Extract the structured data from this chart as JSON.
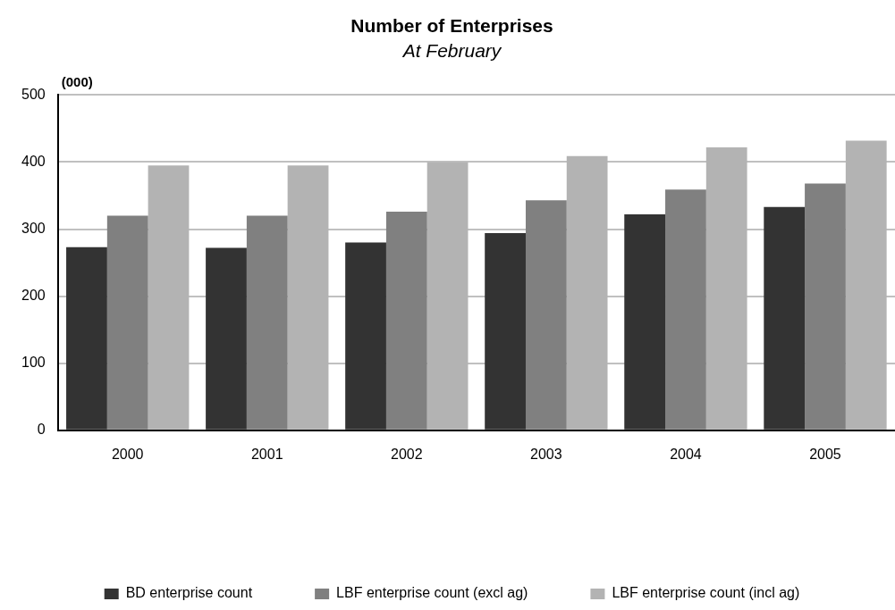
{
  "chart_data": {
    "type": "bar",
    "title": "Number of Enterprises",
    "subtitle": "At February",
    "ylabel": "(000)",
    "categories": [
      "2000",
      "2001",
      "2002",
      "2003",
      "2004",
      "2005"
    ],
    "series": [
      {
        "name": "BD enterprise count",
        "color": "#333333",
        "values": [
          273,
          272,
          280,
          294,
          322,
          333
        ]
      },
      {
        "name": "LBF enterprise count (excl ag)",
        "color": "#808080",
        "values": [
          320,
          320,
          326,
          343,
          359,
          368
        ]
      },
      {
        "name": "LBF enterprise count (incl ag)",
        "color": "#b3b3b3",
        "values": [
          395,
          395,
          400,
          409,
          422,
          432
        ]
      }
    ],
    "ylim": [
      0,
      500
    ],
    "yticks": [
      0,
      100,
      200,
      300,
      400,
      500
    ],
    "grid": "y",
    "legend": "bottom"
  }
}
